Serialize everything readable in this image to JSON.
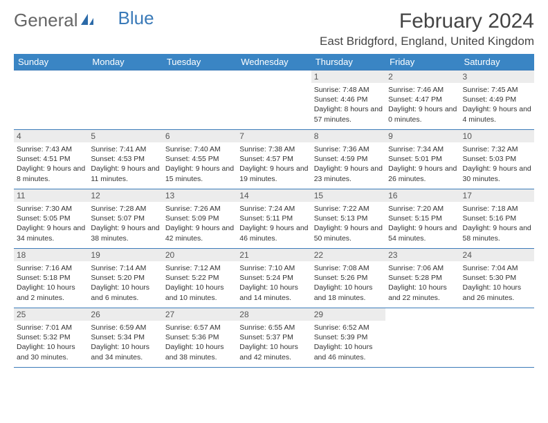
{
  "logo": {
    "part1": "General",
    "part2": "Blue"
  },
  "title": "February 2024",
  "location": "East Bridgford, England, United Kingdom",
  "headers": [
    "Sunday",
    "Monday",
    "Tuesday",
    "Wednesday",
    "Thursday",
    "Friday",
    "Saturday"
  ],
  "colors": {
    "header_bg": "#3a85c4",
    "border": "#3a7ab8",
    "daynum_bg": "#ececec"
  },
  "weeks": [
    [
      null,
      null,
      null,
      null,
      {
        "n": "1",
        "sr": "7:48 AM",
        "ss": "4:46 PM",
        "dl": "8 hours and 57 minutes."
      },
      {
        "n": "2",
        "sr": "7:46 AM",
        "ss": "4:47 PM",
        "dl": "9 hours and 0 minutes."
      },
      {
        "n": "3",
        "sr": "7:45 AM",
        "ss": "4:49 PM",
        "dl": "9 hours and 4 minutes."
      }
    ],
    [
      {
        "n": "4",
        "sr": "7:43 AM",
        "ss": "4:51 PM",
        "dl": "9 hours and 8 minutes."
      },
      {
        "n": "5",
        "sr": "7:41 AM",
        "ss": "4:53 PM",
        "dl": "9 hours and 11 minutes."
      },
      {
        "n": "6",
        "sr": "7:40 AM",
        "ss": "4:55 PM",
        "dl": "9 hours and 15 minutes."
      },
      {
        "n": "7",
        "sr": "7:38 AM",
        "ss": "4:57 PM",
        "dl": "9 hours and 19 minutes."
      },
      {
        "n": "8",
        "sr": "7:36 AM",
        "ss": "4:59 PM",
        "dl": "9 hours and 23 minutes."
      },
      {
        "n": "9",
        "sr": "7:34 AM",
        "ss": "5:01 PM",
        "dl": "9 hours and 26 minutes."
      },
      {
        "n": "10",
        "sr": "7:32 AM",
        "ss": "5:03 PM",
        "dl": "9 hours and 30 minutes."
      }
    ],
    [
      {
        "n": "11",
        "sr": "7:30 AM",
        "ss": "5:05 PM",
        "dl": "9 hours and 34 minutes."
      },
      {
        "n": "12",
        "sr": "7:28 AM",
        "ss": "5:07 PM",
        "dl": "9 hours and 38 minutes."
      },
      {
        "n": "13",
        "sr": "7:26 AM",
        "ss": "5:09 PM",
        "dl": "9 hours and 42 minutes."
      },
      {
        "n": "14",
        "sr": "7:24 AM",
        "ss": "5:11 PM",
        "dl": "9 hours and 46 minutes."
      },
      {
        "n": "15",
        "sr": "7:22 AM",
        "ss": "5:13 PM",
        "dl": "9 hours and 50 minutes."
      },
      {
        "n": "16",
        "sr": "7:20 AM",
        "ss": "5:15 PM",
        "dl": "9 hours and 54 minutes."
      },
      {
        "n": "17",
        "sr": "7:18 AM",
        "ss": "5:16 PM",
        "dl": "9 hours and 58 minutes."
      }
    ],
    [
      {
        "n": "18",
        "sr": "7:16 AM",
        "ss": "5:18 PM",
        "dl": "10 hours and 2 minutes."
      },
      {
        "n": "19",
        "sr": "7:14 AM",
        "ss": "5:20 PM",
        "dl": "10 hours and 6 minutes."
      },
      {
        "n": "20",
        "sr": "7:12 AM",
        "ss": "5:22 PM",
        "dl": "10 hours and 10 minutes."
      },
      {
        "n": "21",
        "sr": "7:10 AM",
        "ss": "5:24 PM",
        "dl": "10 hours and 14 minutes."
      },
      {
        "n": "22",
        "sr": "7:08 AM",
        "ss": "5:26 PM",
        "dl": "10 hours and 18 minutes."
      },
      {
        "n": "23",
        "sr": "7:06 AM",
        "ss": "5:28 PM",
        "dl": "10 hours and 22 minutes."
      },
      {
        "n": "24",
        "sr": "7:04 AM",
        "ss": "5:30 PM",
        "dl": "10 hours and 26 minutes."
      }
    ],
    [
      {
        "n": "25",
        "sr": "7:01 AM",
        "ss": "5:32 PM",
        "dl": "10 hours and 30 minutes."
      },
      {
        "n": "26",
        "sr": "6:59 AM",
        "ss": "5:34 PM",
        "dl": "10 hours and 34 minutes."
      },
      {
        "n": "27",
        "sr": "6:57 AM",
        "ss": "5:36 PM",
        "dl": "10 hours and 38 minutes."
      },
      {
        "n": "28",
        "sr": "6:55 AM",
        "ss": "5:37 PM",
        "dl": "10 hours and 42 minutes."
      },
      {
        "n": "29",
        "sr": "6:52 AM",
        "ss": "5:39 PM",
        "dl": "10 hours and 46 minutes."
      },
      null,
      null
    ]
  ],
  "labels": {
    "sunrise": "Sunrise: ",
    "sunset": "Sunset: ",
    "daylight": "Daylight: "
  }
}
